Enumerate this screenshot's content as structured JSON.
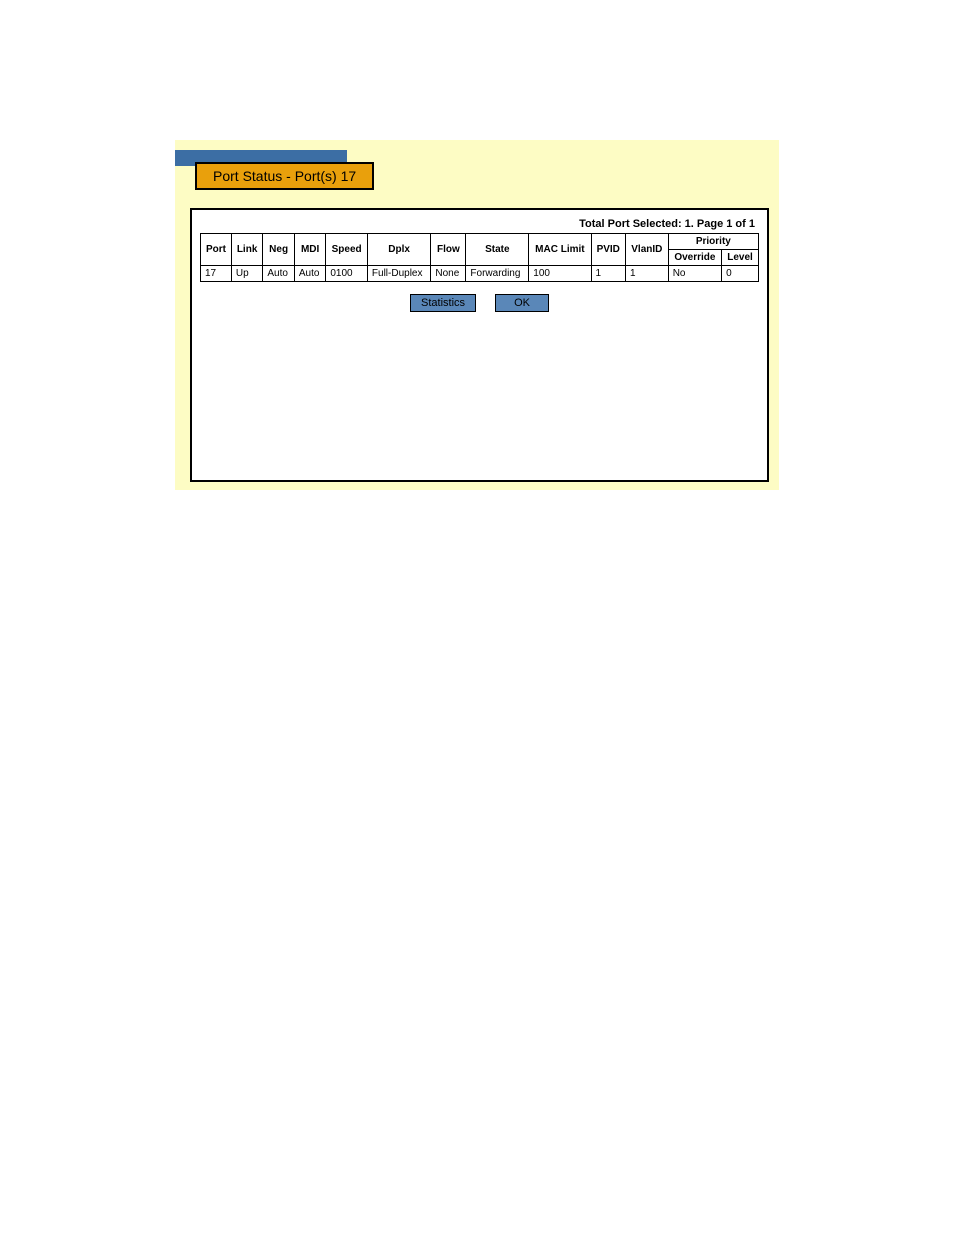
{
  "colors": {
    "panel_bg": "#fdfcc4",
    "blue_bar": "#3c6ea4",
    "title_bg": "#e9a00c",
    "border": "#000000",
    "content_bg": "#ffffff",
    "button_bg": "#5a87b8"
  },
  "title": "Port Status - Port(s) 17",
  "pager": "Total Port Selected: 1. Page 1 of 1",
  "table": {
    "headers_row1": [
      "Port",
      "Link",
      "Neg",
      "MDI",
      "Speed",
      "Dplx",
      "Flow",
      "State",
      "MAC Limit",
      "PVID",
      "VlanID",
      "Priority"
    ],
    "headers_row2": [
      "Override",
      "Level"
    ],
    "rows": [
      {
        "port": "17",
        "link": "Up",
        "neg": "Auto",
        "mdi": "Auto",
        "speed": "0100",
        "dplx": "Full-Duplex",
        "flow": "None",
        "state": "Forwarding",
        "mac_limit": "100",
        "pvid": "1",
        "vlanid": "1",
        "override": "No",
        "level": "0"
      }
    ]
  },
  "buttons": {
    "statistics": "Statistics",
    "ok": "OK"
  }
}
